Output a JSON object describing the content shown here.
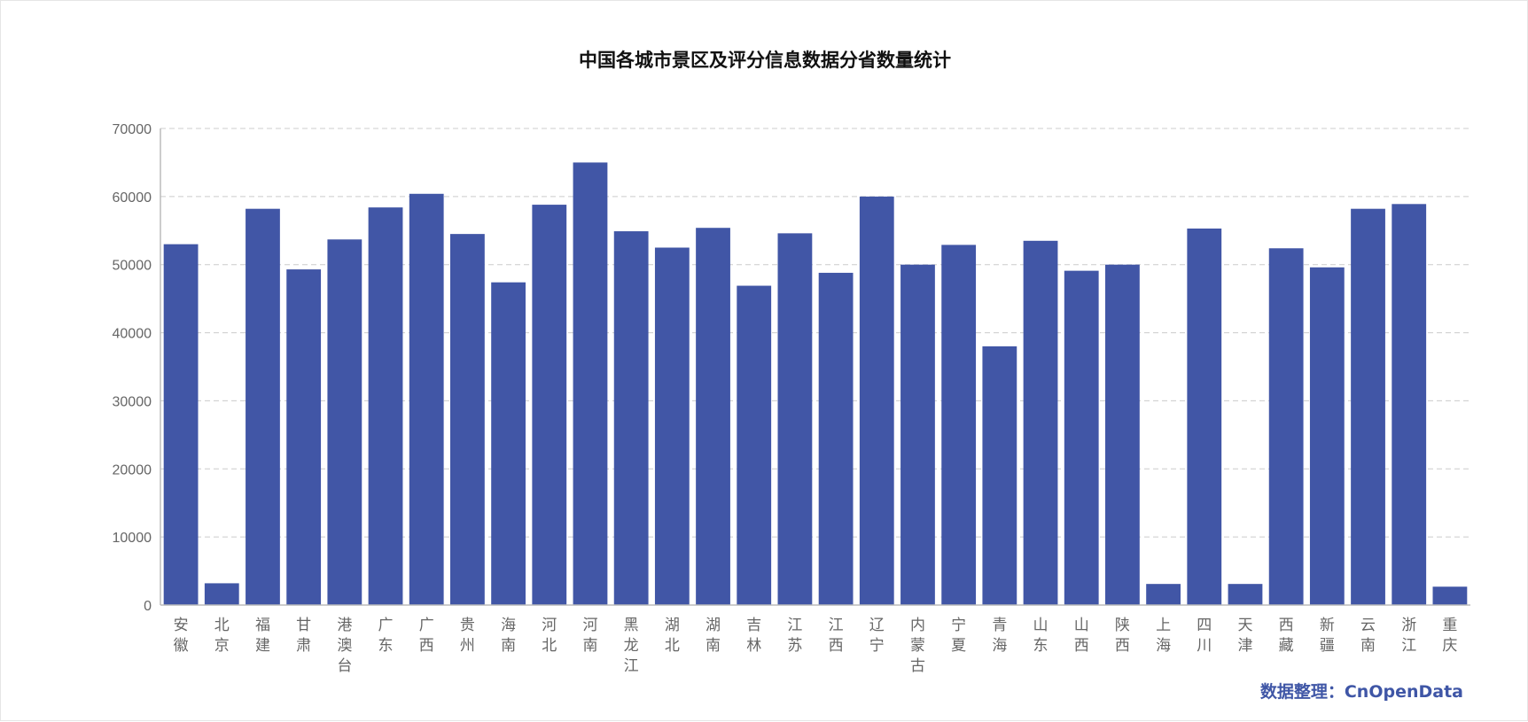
{
  "chart_data": {
    "type": "bar",
    "title": "中国各城市景区及评分信息数据分省数量统计",
    "xlabel": "",
    "ylabel": "",
    "ylim": [
      0,
      70000
    ],
    "yticks": [
      "0",
      "10000",
      "20000",
      "30000",
      "40000",
      "50000",
      "60000",
      "70000"
    ],
    "grid": true,
    "bar_color": "#4156a6",
    "categories": [
      "安徽",
      "北京",
      "福建",
      "甘肃",
      "港澳台",
      "广东",
      "广西",
      "贵州",
      "海南",
      "河北",
      "河南",
      "黑龙江",
      "湖北",
      "湖南",
      "吉林",
      "江苏",
      "江西",
      "辽宁",
      "内蒙古",
      "宁夏",
      "青海",
      "山东",
      "山西",
      "陕西",
      "上海",
      "四川",
      "天津",
      "西藏",
      "新疆",
      "云南",
      "浙江",
      "重庆"
    ],
    "values": [
      53000,
      3200,
      58200,
      49300,
      53700,
      58400,
      60400,
      54500,
      47400,
      58800,
      65000,
      54900,
      52500,
      55400,
      46900,
      54600,
      48800,
      60000,
      50000,
      52900,
      38000,
      53500,
      49100,
      50000,
      3100,
      55300,
      3100,
      52400,
      49600,
      58200,
      58900,
      2700
    ]
  },
  "credit": "数据整理：CnOpenData",
  "colors": {
    "bar": "#4156a6",
    "credit": "#3f56a6",
    "grid": "#cccccc",
    "tick_text": "#666666",
    "title_text": "#111111"
  }
}
